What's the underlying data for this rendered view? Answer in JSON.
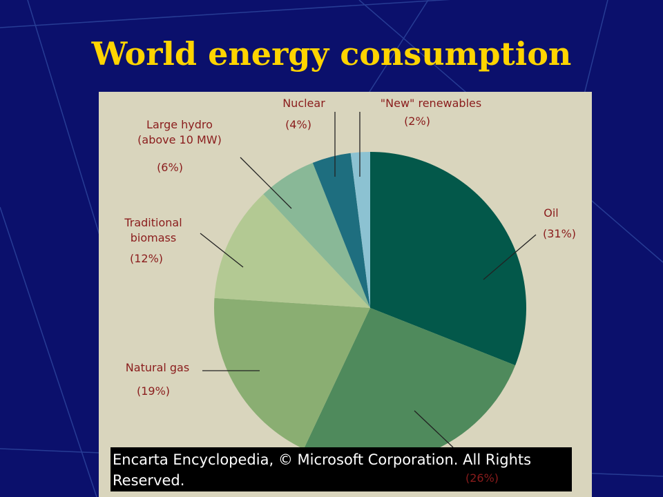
{
  "chart_data": {
    "type": "pie",
    "title": "World energy consumption",
    "categories": [
      [
        "Oil"
      ],
      null,
      [
        "Natural gas"
      ],
      [
        "Traditional",
        "biomass"
      ],
      [
        "Large hydro",
        "(above 10 MW)"
      ],
      [
        "Nuclear"
      ],
      [
        "\"New\" renewables"
      ]
    ],
    "values": [
      31,
      26,
      19,
      12,
      6,
      4,
      2
    ],
    "value_labels": [
      "(31%)",
      "(26%)",
      "(19%)",
      "(12%)",
      "(6%)",
      "(4%)",
      "(2%)"
    ],
    "colors": [
      "#03584a",
      "#4f8a5c",
      "#8aae72",
      "#b3c993",
      "#89b897",
      "#1e6e7f",
      "#8cc2d2"
    ],
    "source": [
      "Encarta Encyclopedia, © Microsoft Corporation. All Rights",
      "Reserved."
    ]
  }
}
